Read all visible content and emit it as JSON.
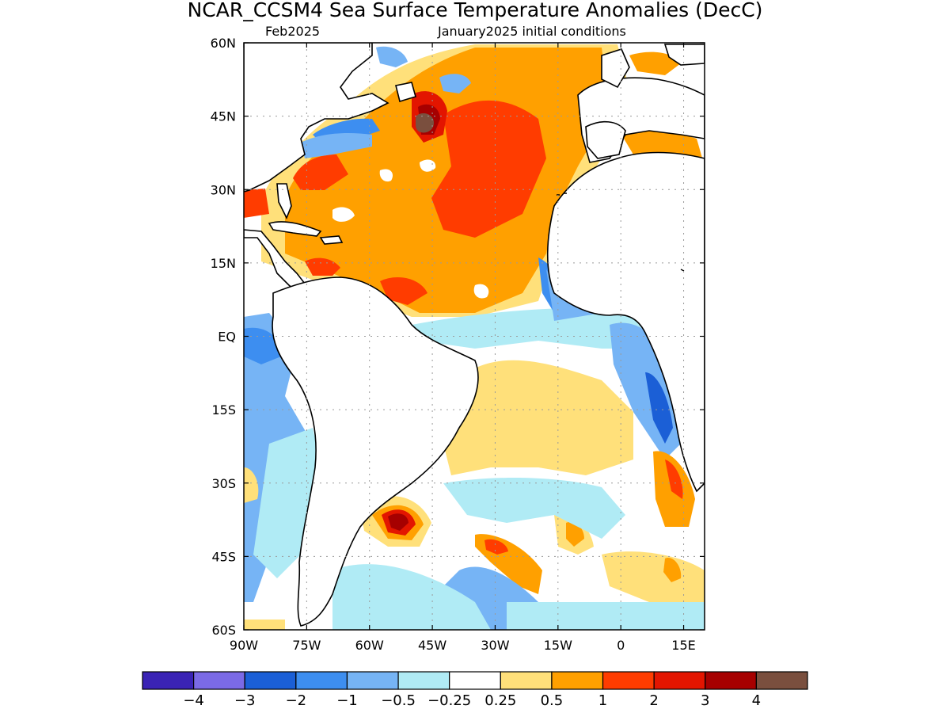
{
  "title": "NCAR_CCSM4 Sea Surface Temperature Anomalies (DecC)",
  "valid_month": "Feb2025",
  "init_label": "January2025 initial conditions",
  "map": {
    "lon_range": [
      -90,
      20
    ],
    "lat_range": [
      -60,
      60
    ],
    "lat_ticks": [
      {
        "value": 60,
        "label": "60N"
      },
      {
        "value": 45,
        "label": "45N"
      },
      {
        "value": 30,
        "label": "30N"
      },
      {
        "value": 15,
        "label": "15N"
      },
      {
        "value": 0,
        "label": "EQ"
      },
      {
        "value": -15,
        "label": "15S"
      },
      {
        "value": -30,
        "label": "30S"
      },
      {
        "value": -45,
        "label": "45S"
      },
      {
        "value": -60,
        "label": "60S"
      }
    ],
    "lon_ticks": [
      {
        "value": -90,
        "label": "90W"
      },
      {
        "value": -75,
        "label": "75W"
      },
      {
        "value": -60,
        "label": "60W"
      },
      {
        "value": -45,
        "label": "45W"
      },
      {
        "value": -30,
        "label": "30W"
      },
      {
        "value": -15,
        "label": "15W"
      },
      {
        "value": 0,
        "label": "0"
      },
      {
        "value": 15,
        "label": "15E"
      }
    ]
  },
  "colorbar": {
    "colors": [
      "#3a23b5",
      "#7b6ae6",
      "#1b5fd6",
      "#3d8ef0",
      "#76b4f5",
      "#b0ebf5",
      "#ffffff",
      "#ffe07a",
      "#ffa000",
      "#ff3c00",
      "#e31500",
      "#a60000",
      "#7a4f3e"
    ],
    "labels": [
      "−4",
      "−3",
      "−2",
      "−1",
      "−0.5",
      "−0.25",
      "0.25",
      "0.5",
      "1",
      "2",
      "3",
      "4"
    ]
  },
  "chart_data": {
    "type": "heatmap",
    "title": "NCAR_CCSM4 Sea Surface Temperature Anomalies (DecC)",
    "units": "DecC",
    "levels": [
      -4,
      -3,
      -2,
      -1,
      -0.5,
      -0.25,
      0.25,
      0.5,
      1,
      2,
      3,
      4
    ],
    "region": {
      "lon": [
        -90,
        20
      ],
      "lat": [
        -60,
        60
      ]
    },
    "anomaly_features": [
      {
        "lon": -45,
        "lat": 37,
        "value": 1.5
      },
      {
        "lon": -30,
        "lat": 30,
        "value": 2
      },
      {
        "lon": -45,
        "lat": 43,
        "value": 4
      },
      {
        "lon": -50,
        "lat": 50,
        "value": 1
      },
      {
        "lon": -65,
        "lat": 42,
        "value": -2
      },
      {
        "lon": -20,
        "lat": 12,
        "value": 1
      },
      {
        "lon": -72,
        "lat": 15,
        "value": 2
      },
      {
        "lon": -20,
        "lat": -2,
        "value": -0.5
      },
      {
        "lon": -20,
        "lat": 8,
        "value": -1.5
      },
      {
        "lon": -83,
        "lat": -10,
        "value": -1
      },
      {
        "lon": 10,
        "lat": -12,
        "value": -2
      },
      {
        "lon": -25,
        "lat": -20,
        "value": 0.5
      },
      {
        "lon": 12,
        "lat": -30,
        "value": 2
      },
      {
        "lon": -53,
        "lat": -37,
        "value": 3
      },
      {
        "lon": -30,
        "lat": -42,
        "value": 2
      },
      {
        "lon": -15,
        "lat": -35,
        "value": -0.5
      },
      {
        "lon": -30,
        "lat": -52,
        "value": -1
      },
      {
        "lon": -88,
        "lat": -30,
        "value": 0.5
      }
    ]
  }
}
